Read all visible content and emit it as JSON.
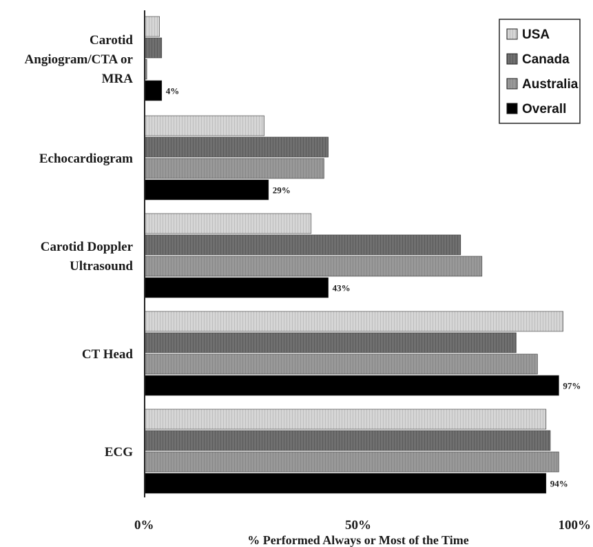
{
  "chart_data": {
    "type": "bar",
    "orientation": "horizontal",
    "xlabel": "% Performed Always or Most of the Time",
    "xlim": [
      0,
      100
    ],
    "x_ticks": [
      "0%",
      "50%",
      "100%"
    ],
    "categories": [
      "Carotid Angiogram/CTA or MRA",
      "Echocardiogram",
      "Carotid Doppler Ultrasound",
      "CT Head",
      "ECG"
    ],
    "category_display": [
      [
        "Carotid",
        "Angiogram/CTA or",
        "MRA"
      ],
      [
        "Echocardiogram"
      ],
      [
        "Carotid Doppler",
        "Ultrasound"
      ],
      [
        "CT Head"
      ],
      [
        "ECG"
      ]
    ],
    "series": [
      {
        "name": "USA",
        "color": "#d4d4d4",
        "values": [
          3.5,
          28,
          39,
          98,
          94
        ]
      },
      {
        "name": "Canada",
        "color": "#6e6e6e",
        "values": [
          4,
          43,
          74,
          87,
          95
        ]
      },
      {
        "name": "Australia",
        "color": "#9a9a9a",
        "values": [
          0.5,
          42,
          79,
          92,
          97
        ]
      },
      {
        "name": "Overall",
        "color": "#000000",
        "values": [
          4,
          29,
          43,
          97,
          94
        ]
      }
    ],
    "data_labels": {
      "series": "Overall",
      "labels": [
        "4%",
        "29%",
        "43%",
        "97%",
        "94%"
      ]
    },
    "legend": {
      "position": "top-right"
    },
    "grid": false
  }
}
